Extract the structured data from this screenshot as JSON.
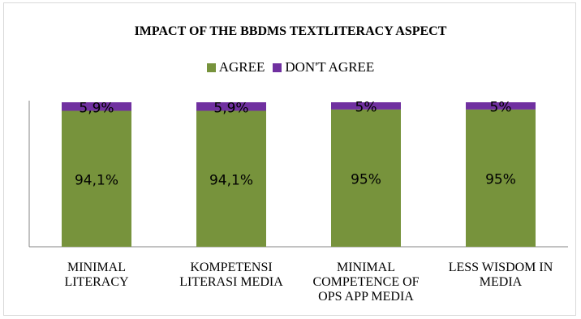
{
  "chart_data": {
    "type": "bar",
    "stacked": true,
    "title": "IMPACT OF THE BBDMS TEXTLITERACY ASPECT",
    "legend_position": "top",
    "categories": [
      [
        "MINIMAL",
        "LITERACY"
      ],
      [
        "KOMPETENSI",
        "LITERASI MEDIA"
      ],
      [
        "MINIMAL",
        "COMPETENCE OF",
        "OPS APP MEDIA"
      ],
      [
        "LESS WISDOM IN",
        "MEDIA"
      ]
    ],
    "series": [
      {
        "name": "AGREE",
        "color": "#77933c",
        "values": [
          94.1,
          94.1,
          95,
          95
        ],
        "labels": [
          "94,1%",
          "94,1%",
          "95%",
          "95%"
        ]
      },
      {
        "name": "DON'T AGREE",
        "color": "#7030a0",
        "values": [
          5.9,
          5.9,
          5,
          5
        ],
        "labels": [
          "5,9%",
          "5,9%",
          "5%",
          "5%"
        ]
      }
    ],
    "ylim": [
      0,
      100
    ],
    "grid": false
  }
}
